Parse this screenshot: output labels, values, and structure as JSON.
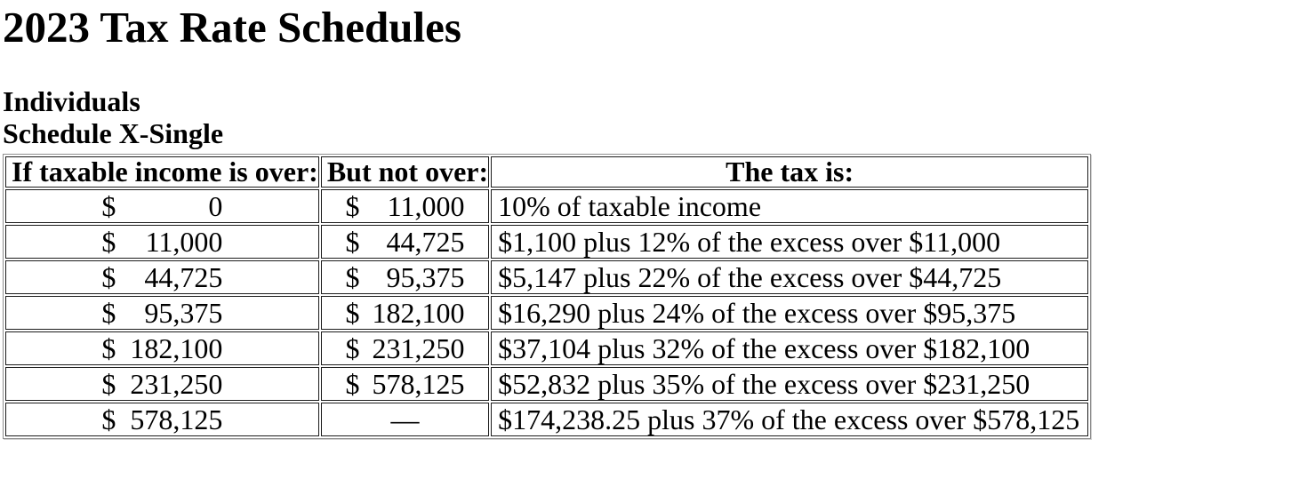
{
  "page": {
    "title": "2023 Tax Rate Schedules"
  },
  "section": {
    "group": "Individuals",
    "schedule": "Schedule X-Single"
  },
  "table": {
    "headers": {
      "over": "If taxable income is over:",
      "not_over": "But not over:",
      "tax": "The tax is:"
    },
    "currency_symbol": "$",
    "no_upper_limit": "—",
    "rows": [
      {
        "over": "0",
        "not_over": "11,000",
        "tax": "10% of taxable income"
      },
      {
        "over": "11,000",
        "not_over": "44,725",
        "tax": "$1,100 plus 12% of the excess over $11,000"
      },
      {
        "over": "44,725",
        "not_over": "95,375",
        "tax": "$5,147 plus 22% of the excess over $44,725"
      },
      {
        "over": "95,375",
        "not_over": "182,100",
        "tax": "$16,290 plus 24% of the excess over $95,375"
      },
      {
        "over": "182,100",
        "not_over": "231,250",
        "tax": "$37,104 plus 32% of the excess over $182,100"
      },
      {
        "over": "231,250",
        "not_over": "578,125",
        "tax": "$52,832 plus 35% of the excess over $231,250"
      },
      {
        "over": "578,125",
        "not_over": null,
        "tax": "$174,238.25 plus 37% of the excess over $578,125"
      }
    ],
    "colors": {
      "text": "#000000",
      "background": "#ffffff",
      "cell_border": "#1c1c1c",
      "table_border": "#8f8f8f"
    }
  }
}
